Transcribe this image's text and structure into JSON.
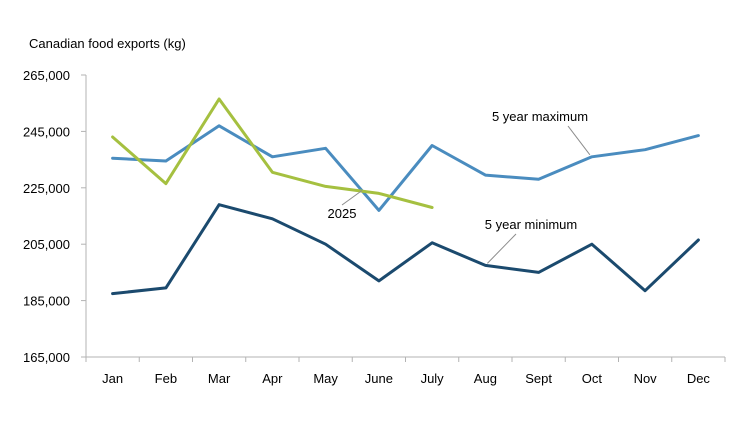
{
  "chart_data": {
    "type": "line",
    "title": "",
    "xlabel": "",
    "ylabel": "Canadian food exports (kg)",
    "categories": [
      "Jan",
      "Feb",
      "Mar",
      "Apr",
      "May",
      "June",
      "July",
      "Aug",
      "Sept",
      "Oct",
      "Nov",
      "Dec"
    ],
    "ylim": [
      165000,
      265000
    ],
    "yticks": [
      165000,
      185000,
      205000,
      225000,
      245000,
      265000
    ],
    "ytick_labels": [
      "165,000",
      "185,000",
      "205,000",
      "225,000",
      "245,000",
      "265,000"
    ],
    "grid": false,
    "legend": "none (inline labels)",
    "series": [
      {
        "name": "5 year maximum",
        "color": "#4a8cbf",
        "values": [
          235500,
          234500,
          247000,
          236000,
          239000,
          217000,
          240000,
          229500,
          228000,
          236000,
          238500,
          243500
        ]
      },
      {
        "name": "5 year minimum",
        "color": "#1b4a6e",
        "values": [
          187500,
          189500,
          219000,
          214000,
          205000,
          192000,
          205500,
          197500,
          195000,
          205000,
          188500,
          206500
        ]
      },
      {
        "name": "2025",
        "color": "#a5c040",
        "values": [
          243000,
          226500,
          256500,
          230500,
          225500,
          223000,
          218000,
          null,
          null,
          null,
          null,
          null
        ]
      }
    ]
  }
}
